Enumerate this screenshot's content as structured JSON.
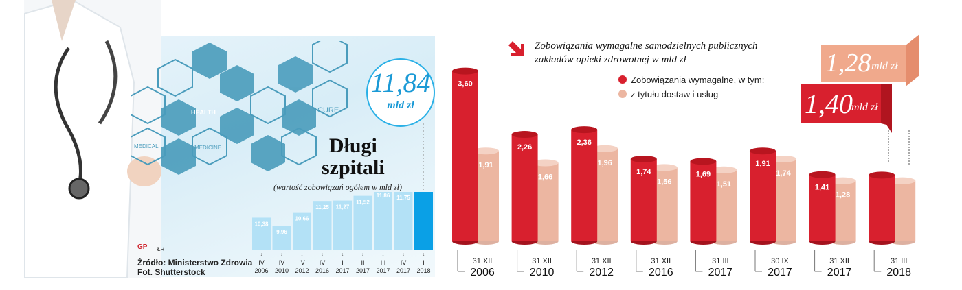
{
  "chart_data": [
    {
      "type": "bar",
      "title": "Długi szpitali",
      "subtitle": "(wartość zobowiązań ogółem w mld zł)",
      "categories": [
        [
          "IV",
          "2006"
        ],
        [
          "IV",
          "2010"
        ],
        [
          "IV",
          "2012"
        ],
        [
          "IV",
          "2016"
        ],
        [
          "I",
          "2017"
        ],
        [
          "II",
          "2017"
        ],
        [
          "III",
          "2017"
        ],
        [
          "IV",
          "2017"
        ],
        [
          "I",
          "2018"
        ]
      ],
      "values": [
        10.38,
        9.96,
        10.66,
        11.25,
        11.27,
        11.52,
        11.86,
        11.75,
        11.84
      ],
      "value_labels": [
        "10,38",
        "9,96",
        "10,66",
        "11,25",
        "11,27",
        "11,52",
        "11,86",
        "11,75",
        ""
      ],
      "highlight": {
        "value_text": "11,84",
        "unit": "mld zł"
      },
      "colors": {
        "bar": "#b3e1f6",
        "highlight_bar": "#0aa0e6",
        "label": "#ffffff"
      }
    },
    {
      "type": "bar",
      "title": "Zobowiązania wymagalne samodzielnych publicznych zakładów opieki zdrowotnej w mld zł",
      "title_lines": [
        "Zobowiązania wymagalne samodzielnych publicznych",
        "zakładów opieki zdrowotnej w mld zł"
      ],
      "categories": [
        [
          "31 XII",
          "2006"
        ],
        [
          "31 XII",
          "2010"
        ],
        [
          "31 XII",
          "2012"
        ],
        [
          "31 XII",
          "2016"
        ],
        [
          "31 III",
          "2017"
        ],
        [
          "30 IX",
          "2017"
        ],
        [
          "31 XII",
          "2017"
        ],
        [
          "31 III",
          "2018"
        ]
      ],
      "series": [
        {
          "name": "Zobowiązania wymagalne, w tym:",
          "values": [
            3.6,
            2.26,
            2.36,
            1.74,
            1.69,
            1.91,
            1.41,
            1.4
          ],
          "labels": [
            "3,60",
            "2,26",
            "2,36",
            "1,74",
            "1,69",
            "1,91",
            "1,41",
            ""
          ],
          "color": "#d8202e"
        },
        {
          "name": "z tytułu dostaw i usług",
          "values": [
            1.91,
            1.66,
            1.96,
            1.56,
            1.51,
            1.74,
            1.28,
            1.28
          ],
          "labels": [
            "1,91",
            "1,66",
            "1,96",
            "1,56",
            "1,51",
            "1,74",
            "1,28",
            ""
          ],
          "color": "#ecb6a1"
        }
      ],
      "callouts": [
        {
          "value_text": "1,40",
          "unit": "mld zł",
          "color": "#d8202e"
        },
        {
          "value_text": "1,28",
          "unit": "mld zł",
          "color": "#f0a98c"
        }
      ]
    }
  ],
  "infographic": {
    "icon_labels": [
      "HEALTH",
      "CURE",
      "MEDICAL",
      "MEDICINE"
    ],
    "source": "Źródło: Ministerstwo Zdrowia",
    "photo": "Fot. Shutterstock",
    "author": "ŁR",
    "logo_text": "GP"
  }
}
